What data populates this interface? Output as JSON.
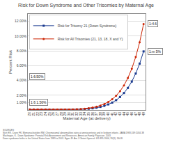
{
  "chart_data": {
    "type": "line",
    "title": "Risk for Down Syndrome and Other Trisomies by Maternal Age",
    "x_label": "Maternal Age (at delivery)",
    "y_label": "Percent Risk",
    "x": [
      20,
      21,
      22,
      23,
      24,
      25,
      26,
      27,
      28,
      29,
      30,
      31,
      32,
      33,
      34,
      35,
      36,
      37,
      38,
      39,
      40,
      41,
      42,
      43,
      44,
      45,
      46,
      47,
      48,
      49
    ],
    "series": [
      {
        "name": "Risk for Trisomy 21 (Down Syndrome)",
        "color": "#1a3a8f",
        "marker": "square",
        "values": [
          0.053,
          0.0514,
          0.0499,
          0.0485,
          0.0471,
          0.0459,
          0.0449,
          0.0445,
          0.0447,
          0.0461,
          0.0496,
          0.0567,
          0.0693,
          0.0893,
          0.1195,
          0.1644,
          0.2244,
          0.3051,
          0.4137,
          0.5584,
          0.7501,
          1.0018,
          1.33,
          1.754,
          2.2956,
          2.984,
          3.8507,
          4.9338,
          6.2758,
          7.9268
        ]
      },
      {
        "name": "Risk for All Trisomies (21, 13, 18, X and Y)",
        "color": "#cc2200",
        "marker": "circle",
        "values": [
          0.0726,
          0.0703,
          0.0682,
          0.0663,
          0.0646,
          0.063,
          0.0618,
          0.0613,
          0.0618,
          0.0641,
          0.0694,
          0.0804,
          0.0993,
          0.129,
          0.1733,
          0.2388,
          0.326,
          0.4429,
          0.5998,
          0.8097,
          1.0869,
          1.4512,
          1.9279,
          2.5434,
          3.3298,
          4.3282,
          5.5918,
          7.1821,
          9.1693,
          11.638
        ]
      }
    ],
    "xlim": [
      19.5,
      49.5
    ],
    "xticks": [
      20,
      21,
      22,
      23,
      24,
      25,
      26,
      27,
      28,
      29,
      30,
      31,
      32,
      33,
      34,
      35,
      36,
      37,
      38,
      39,
      40,
      41,
      42,
      43,
      44,
      45,
      46,
      47,
      48,
      49
    ],
    "ylim": [
      0,
      13.0
    ],
    "yticks": [
      {
        "value": 1.0,
        "label": "1.00%"
      },
      {
        "value": 2.0,
        "label": "2.00%"
      },
      {
        "value": 4.0,
        "label": "4.00%"
      },
      {
        "value": 6.0,
        "label": "6.00%"
      },
      {
        "value": 8.0,
        "label": "8.00%"
      },
      {
        "value": 10.0,
        "label": "10.00%"
      },
      {
        "value": 12.0,
        "label": "12.00%"
      }
    ],
    "grid": "y",
    "legend": "upper left",
    "annotations": [
      "1:4.6",
      "1:m 5%",
      "1:6:50%",
      "1:6 1.56%"
    ],
    "footer": "SOURCES:\nNich ER, Crane FK, Memonucleotides RM. Chromosomal abnormalities rates at amniocentesis and in liveborn infants. JAMA 1983;249:2034-38\nMachegan, K.. Down Syndrome: Prenatal Risk Assessment and Resources. American Family Physician. 2003.\nDown syndrome births in the United States from 1989 to 2001. Egan JF. Am J Obstet Gynecol. 6/1:895-2004, 95(3): 164-8."
  }
}
